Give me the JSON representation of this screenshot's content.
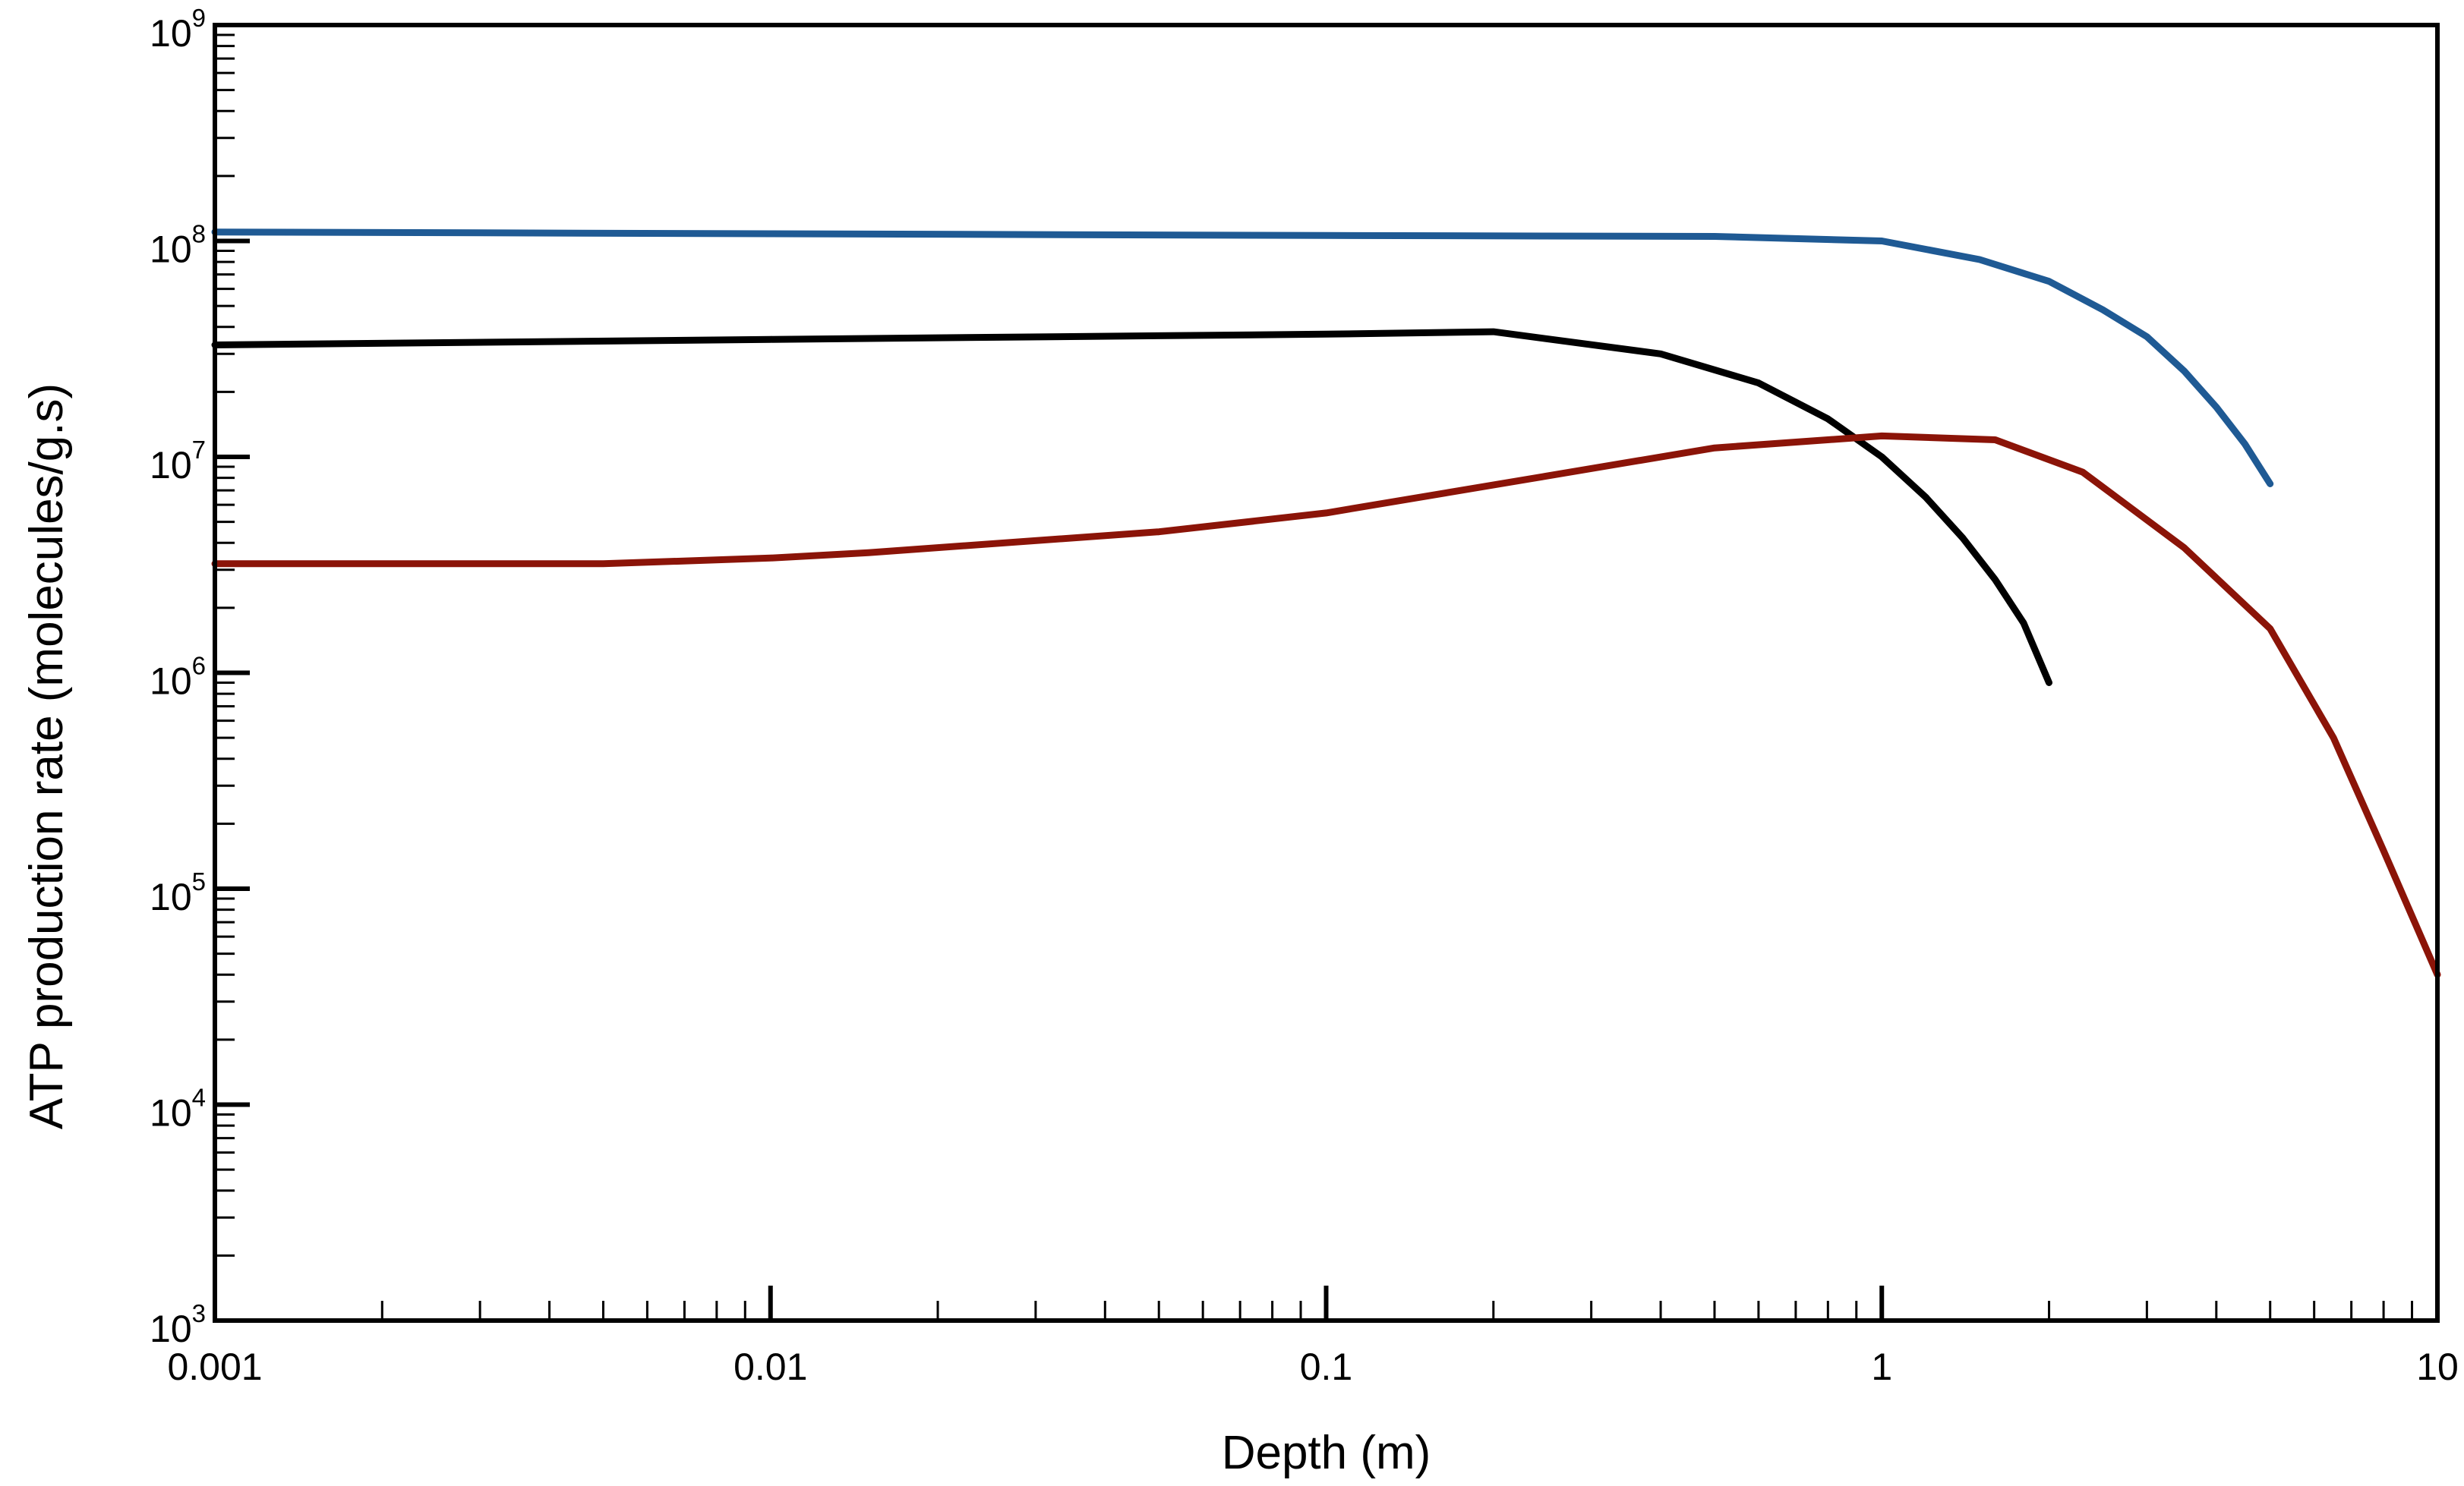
{
  "chart_data": {
    "type": "line",
    "xlabel": "Depth (m)",
    "ylabel": "ATP production rate (molecules/g.s)",
    "xscale": "log",
    "yscale": "log",
    "xlim": [
      0.001,
      10
    ],
    "ylim": [
      1000,
      1000000000
    ],
    "x_ticks": [
      {
        "value": 0.001,
        "label": "0.001"
      },
      {
        "value": 0.01,
        "label": "0.01"
      },
      {
        "value": 0.1,
        "label": "0.1"
      },
      {
        "value": 1,
        "label": "1"
      },
      {
        "value": 10,
        "label": "10"
      }
    ],
    "y_ticks": [
      {
        "value": 1000,
        "base": "10",
        "exp": "3"
      },
      {
        "value": 10000,
        "base": "10",
        "exp": "4"
      },
      {
        "value": 100000,
        "base": "10",
        "exp": "5"
      },
      {
        "value": 1000000,
        "base": "10",
        "exp": "6"
      },
      {
        "value": 10000000,
        "base": "10",
        "exp": "7"
      },
      {
        "value": 100000000,
        "base": "10",
        "exp": "8"
      },
      {
        "value": 1000000000,
        "base": "10",
        "exp": "9"
      }
    ],
    "grid": false,
    "legend": "none",
    "series": [
      {
        "color": "#1f5a94",
        "points": [
          [
            0.001,
            110000000
          ],
          [
            0.01,
            108000000
          ],
          [
            0.1,
            106000000
          ],
          [
            0.5,
            105000000
          ],
          [
            1,
            100000000
          ],
          [
            1.5,
            82000000
          ],
          [
            2,
            65000000
          ],
          [
            2.5,
            48000000
          ],
          [
            3,
            36000000
          ],
          [
            3.5,
            25000000
          ],
          [
            4,
            17000000
          ],
          [
            4.5,
            11500000
          ],
          [
            5,
            7500000
          ]
        ]
      },
      {
        "color": "#000000",
        "points": [
          [
            0.001,
            33000000
          ],
          [
            0.01,
            35000000
          ],
          [
            0.1,
            37000000
          ],
          [
            0.2,
            38000000
          ],
          [
            0.4,
            30000000
          ],
          [
            0.6,
            22000000
          ],
          [
            0.8,
            15000000
          ],
          [
            1,
            10000000
          ],
          [
            1.2,
            6500000
          ],
          [
            1.4,
            4200000
          ],
          [
            1.6,
            2700000
          ],
          [
            1.8,
            1700000
          ],
          [
            2,
            900000
          ]
        ]
      },
      {
        "color": "#8b1408",
        "points": [
          [
            0.001,
            3200000
          ],
          [
            0.005,
            3200000
          ],
          [
            0.01,
            3400000
          ],
          [
            0.015,
            3600000
          ],
          [
            0.05,
            4500000
          ],
          [
            0.1,
            5500000
          ],
          [
            0.5,
            11000000
          ],
          [
            1,
            12500000
          ],
          [
            1.6,
            12000000
          ],
          [
            2.3,
            8500000
          ],
          [
            3.5,
            3800000
          ],
          [
            5,
            1600000
          ],
          [
            6.5,
            500000
          ],
          [
            8,
            150000
          ],
          [
            10,
            40000
          ]
        ]
      }
    ]
  }
}
